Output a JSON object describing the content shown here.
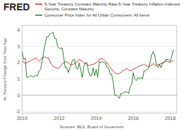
{
  "chart_data": {
    "type": "line",
    "title": "FRED",
    "xlabel": "Sources: BLS, Board of Governors",
    "ylabel": "%, Percent Change from Year Ago",
    "x": [
      2010.0,
      2010.08,
      2010.17,
      2010.25,
      2010.33,
      2010.42,
      2010.5,
      2010.58,
      2010.67,
      2010.75,
      2010.83,
      2010.92,
      2011.0,
      2011.08,
      2011.17,
      2011.25,
      2011.33,
      2011.42,
      2011.5,
      2011.58,
      2011.67,
      2011.75,
      2011.83,
      2011.92,
      2012.0,
      2012.08,
      2012.17,
      2012.25,
      2012.33,
      2012.42,
      2012.5,
      2012.58,
      2012.67,
      2012.75,
      2012.83,
      2012.92,
      2013.0,
      2013.08,
      2013.17,
      2013.25,
      2013.33,
      2013.42,
      2013.5,
      2013.58,
      2013.67,
      2013.75,
      2013.83,
      2013.92,
      2014.0,
      2014.08,
      2014.17,
      2014.25,
      2014.33,
      2014.42,
      2014.5,
      2014.58,
      2014.67,
      2014.75,
      2014.83,
      2014.92,
      2015.0,
      2015.08,
      2015.17,
      2015.25,
      2015.33,
      2015.42,
      2015.5,
      2015.58,
      2015.67,
      2015.75,
      2015.83,
      2015.92,
      2016.0,
      2016.08,
      2016.17,
      2016.25,
      2016.33,
      2016.42,
      2016.5,
      2016.58,
      2016.67,
      2016.75,
      2016.83,
      2016.92,
      2017.0,
      2017.08,
      2017.17,
      2017.25,
      2017.33,
      2017.42,
      2017.5,
      2017.58,
      2017.67,
      2017.75,
      2017.83,
      2017.92,
      2018.0,
      2018.08,
      2018.17
    ],
    "series": [
      {
        "name": "5-Year Treasury Constant Maturity Rate-5-Year Treasury Inflation-Indexed Security, Constant Maturity",
        "color": "#c8373a",
        "values": [
          2.1,
          2.05,
          1.95,
          2.0,
          2.05,
          2.1,
          2.15,
          2.2,
          2.25,
          2.3,
          2.2,
          2.1,
          2.2,
          2.3,
          2.35,
          2.35,
          2.3,
          2.3,
          2.1,
          1.9,
          1.8,
          1.75,
          1.7,
          1.65,
          1.7,
          1.8,
          1.95,
          2.0,
          2.1,
          2.05,
          2.0,
          1.9,
          1.85,
          1.9,
          1.95,
          2.0,
          2.1,
          2.2,
          2.15,
          2.1,
          2.0,
          1.95,
          1.9,
          1.85,
          1.85,
          1.9,
          1.9,
          1.95,
          2.0,
          2.1,
          2.2,
          2.25,
          2.25,
          2.2,
          2.1,
          2.0,
          1.85,
          1.75,
          1.6,
          1.5,
          1.4,
          1.35,
          1.3,
          1.35,
          1.4,
          1.5,
          1.55,
          1.6,
          1.65,
          1.55,
          1.5,
          1.55,
          1.6,
          1.65,
          1.7,
          1.75,
          1.8,
          1.85,
          1.85,
          1.9,
          1.85,
          1.8,
          1.75,
          1.8,
          1.85,
          1.95,
          1.85,
          1.85,
          1.9,
          1.9,
          1.95,
          2.0,
          2.05,
          2.1,
          2.1,
          2.05,
          2.05,
          2.1,
          2.15
        ]
      },
      {
        "name": "Consumer Price Index for All Urban Consumers: All Items",
        "color": "#2e7d32",
        "values": [
          2.7,
          2.2,
          2.3,
          1.1,
          1.1,
          1.2,
          1.2,
          1.1,
          1.2,
          1.2,
          1.2,
          1.5,
          1.6,
          2.1,
          2.7,
          3.2,
          3.6,
          3.6,
          3.8,
          3.8,
          3.9,
          3.5,
          3.5,
          3.0,
          2.9,
          2.9,
          2.9,
          2.3,
          1.7,
          1.7,
          1.4,
          1.7,
          2.0,
          2.2,
          2.2,
          1.7,
          1.6,
          2.0,
          1.5,
          1.1,
          1.8,
          2.0,
          2.0,
          1.5,
          1.2,
          1.2,
          1.7,
          1.2,
          1.6,
          1.1,
          2.1,
          2.0,
          2.1,
          2.0,
          2.0,
          1.7,
          1.7,
          1.3,
          1.3,
          0.8,
          0.0,
          0.0,
          -0.1,
          -0.2,
          0.1,
          0.1,
          0.2,
          0.2,
          0.2,
          0.1,
          0.5,
          0.7,
          1.4,
          1.0,
          0.9,
          1.1,
          1.0,
          1.1,
          1.0,
          1.5,
          1.5,
          1.6,
          1.7,
          2.1,
          2.5,
          2.7,
          2.4,
          1.9,
          1.7,
          1.9,
          1.7,
          2.0,
          2.0,
          2.2,
          2.2,
          2.2,
          2.1,
          2.4,
          2.8
        ]
      }
    ],
    "xlim": [
      2010.0,
      2018.35
    ],
    "xticks": [
      2010,
      2012,
      2014,
      2016,
      2018
    ],
    "ylim": [
      -1.1,
      4.3
    ],
    "yticks": [
      -1,
      0,
      1,
      2,
      3,
      4
    ],
    "grid": true,
    "legend": "top"
  }
}
